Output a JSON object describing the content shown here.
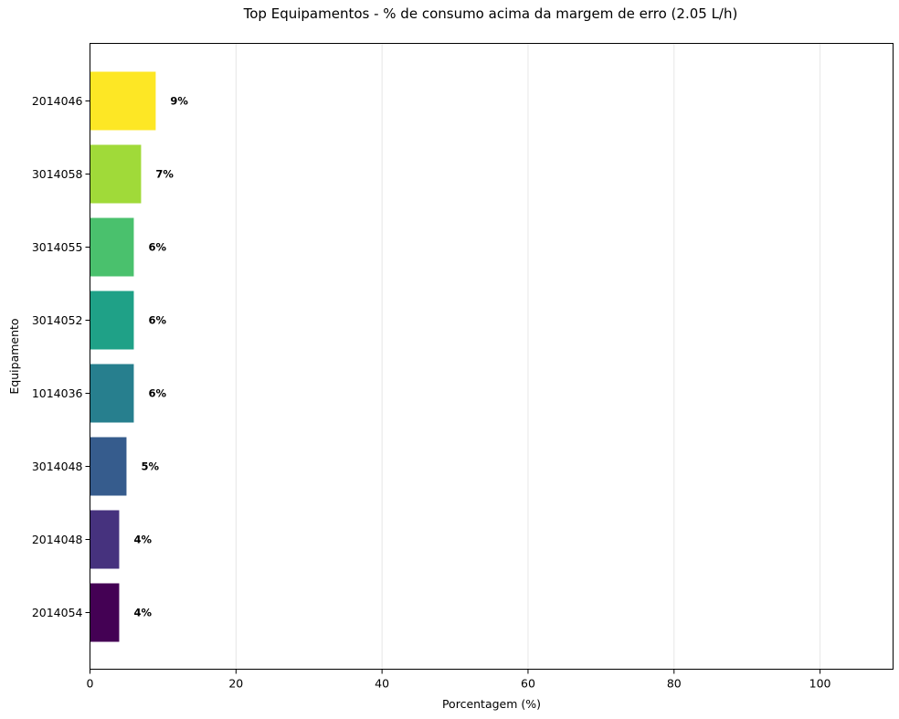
{
  "chart_data": {
    "type": "bar",
    "orientation": "horizontal",
    "title": "Top Equipamentos - % de consumo acima da margem de erro (2.05 L/h)",
    "xlabel": "Porcentagem (%)",
    "ylabel": "Equipamento",
    "xlim": [
      0,
      110
    ],
    "xticks": [
      0,
      20,
      40,
      60,
      80,
      100
    ],
    "grid": "x",
    "categories": [
      "2014046",
      "3014058",
      "3014055",
      "3014052",
      "1014036",
      "3014048",
      "2014048",
      "2014054"
    ],
    "values": [
      9,
      7,
      6,
      6,
      6,
      5,
      4,
      4
    ],
    "data_labels": [
      "9%",
      "7%",
      "6%",
      "6%",
      "6%",
      "5%",
      "4%",
      "4%"
    ],
    "colors": [
      "#fde725",
      "#a0da39",
      "#4ac16d",
      "#1fa187",
      "#277f8e",
      "#365c8d",
      "#46327e",
      "#440154"
    ]
  }
}
